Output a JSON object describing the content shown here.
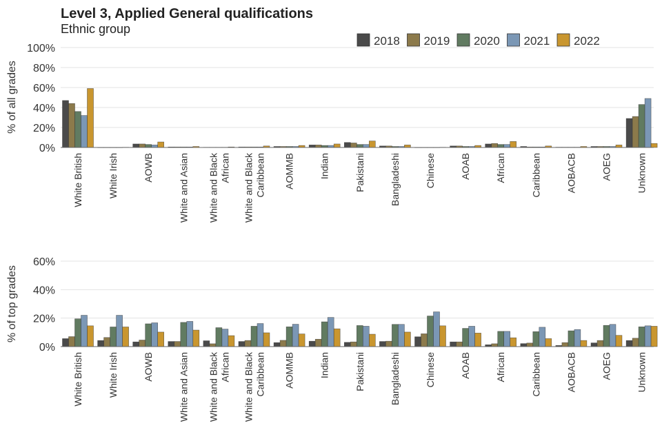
{
  "title": "Level 3, Applied General qualifications",
  "subtitle": "Ethnic group",
  "colors": {
    "2018": "#4a4a4a",
    "2019": "#8c7a4b",
    "2020": "#617b61",
    "2021": "#7b97b5",
    "2022": "#c9962f"
  },
  "chart_data": [
    {
      "type": "bar",
      "ylabel": "% of all grades",
      "ylim": [
        0,
        100
      ],
      "yticks": [
        "0%",
        "20%",
        "40%",
        "60%",
        "80%",
        "100%"
      ],
      "grid": true,
      "legend": "top-right",
      "categories": [
        "White British",
        "White Irish",
        "AOWB",
        "White and Asian",
        "White and Black African",
        "White and Black Caribbean",
        "AOMMB",
        "Indian",
        "Pakistani",
        "Bangladeshi",
        "Chinese",
        "AOAB",
        "African",
        "Caribbean",
        "AOBACB",
        "AOEG",
        "Unknown"
      ],
      "series": [
        {
          "name": "2018",
          "values": [
            47,
            0.1,
            3.5,
            0.5,
            0.2,
            0.5,
            1,
            2.5,
            5,
            1.5,
            0.1,
            1.5,
            3.5,
            1,
            0.3,
            1,
            29
          ]
        },
        {
          "name": "2019",
          "values": [
            44,
            0.1,
            3.5,
            0.5,
            0.2,
            0.5,
            1,
            2.5,
            4.5,
            1.5,
            0.1,
            1.5,
            4,
            0.5,
            0.3,
            1,
            31
          ]
        },
        {
          "name": "2020",
          "values": [
            36,
            0.1,
            3,
            0.5,
            0.2,
            0.5,
            1,
            2,
            3,
            1,
            0.1,
            1,
            3,
            0.5,
            0.3,
            1,
            43
          ]
        },
        {
          "name": "2021",
          "values": [
            32,
            0.1,
            2.5,
            0.5,
            0.2,
            0.5,
            1,
            2,
            3,
            1,
            0.1,
            1,
            3,
            0.5,
            0.3,
            1,
            49
          ]
        },
        {
          "name": "2022",
          "values": [
            59,
            0.2,
            5.5,
            1,
            0.5,
            1.5,
            2,
            3.5,
            6.5,
            2.5,
            0.2,
            2,
            6,
            1.5,
            1,
            2.5,
            4
          ]
        }
      ]
    },
    {
      "type": "bar",
      "ylabel": "% of top grades",
      "ylim": [
        0,
        60
      ],
      "yticks": [
        "0%",
        "20%",
        "40%",
        "60%"
      ],
      "grid": true,
      "categories": [
        "White British",
        "White Irish",
        "AOWB",
        "White and Asian",
        "White and Black African",
        "White and Black Caribbean",
        "AOMMB",
        "Indian",
        "Pakistani",
        "Bangladeshi",
        "Chinese",
        "AOAB",
        "African",
        "Caribbean",
        "AOBACB",
        "AOEG",
        "Unknown"
      ],
      "series": [
        {
          "name": "2018",
          "values": [
            5.6,
            4.3,
            3.3,
            3.6,
            4.1,
            3.6,
            2.8,
            3.8,
            3.0,
            3.6,
            6.9,
            3.3,
            1.3,
            2.1,
            0.8,
            2.6,
            4.3
          ]
        },
        {
          "name": "2019",
          "values": [
            7.0,
            6.4,
            4.6,
            3.6,
            2.0,
            4.3,
            4.4,
            5.2,
            3.3,
            3.8,
            9.0,
            3.3,
            2.0,
            2.5,
            2.8,
            4.3,
            5.9
          ]
        },
        {
          "name": "2020",
          "values": [
            19.5,
            13.8,
            16.0,
            17.0,
            13.3,
            14.3,
            13.9,
            17.4,
            14.8,
            15.6,
            21.5,
            12.8,
            10.7,
            10.5,
            11.1,
            14.9,
            13.9
          ]
        },
        {
          "name": "2021",
          "values": [
            22.0,
            22.0,
            16.7,
            17.7,
            12.3,
            16.2,
            15.7,
            20.5,
            14.3,
            15.6,
            24.4,
            14.3,
            10.7,
            13.6,
            12.0,
            15.6,
            14.6
          ]
        },
        {
          "name": "2022",
          "values": [
            14.6,
            13.8,
            10.2,
            11.6,
            7.7,
            9.7,
            8.9,
            12.5,
            8.7,
            10.2,
            14.6,
            9.5,
            6.2,
            5.6,
            4.3,
            7.9,
            14.3
          ]
        }
      ]
    }
  ]
}
